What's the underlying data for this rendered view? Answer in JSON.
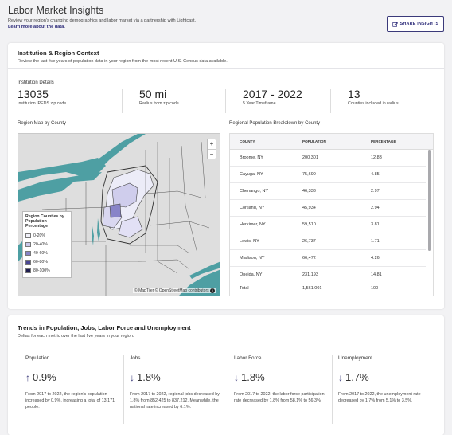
{
  "header": {
    "title": "Labor Market Insights",
    "intro_text": "Review your region's changing demographics and labor market via a partnership with Lightcast.",
    "intro_link": "Learn more about the data.",
    "share_label": "SHARE INSIGHTS"
  },
  "context": {
    "title": "Institution & Region Context",
    "subtitle": "Review the last five years of population data in your region from the most recent U.S. Census data available.",
    "details_label": "Institution Details",
    "stats": [
      {
        "value": "13035",
        "label": "Institution IPEDS zip code"
      },
      {
        "value": "50 mi",
        "label": "Radius from zip code"
      },
      {
        "value": "2017 - 2022",
        "label": "5 Year Timeframe"
      },
      {
        "value": "13",
        "label": "Counties included in radius"
      }
    ],
    "map_label": "Region Map by County",
    "table_label": "Regional Population Breakdown by County"
  },
  "map": {
    "zoom_in": "+",
    "zoom_out": "−",
    "legend_title": "Region Counties by Population Percentage",
    "legend": [
      {
        "label": "0-20%",
        "color": "#f2f2fb"
      },
      {
        "label": "20-40%",
        "color": "#c9c7ea"
      },
      {
        "label": "40-60%",
        "color": "#8884c8"
      },
      {
        "label": "60-80%",
        "color": "#4a4694"
      },
      {
        "label": "80-100%",
        "color": "#1f1d4f"
      }
    ],
    "attribution": "© MapTiler © OpenStreetMap contributors"
  },
  "table": {
    "headers": {
      "county": "COUNTY",
      "population": "POPULATION",
      "percentage": "PERCENTAGE"
    },
    "rows": [
      {
        "county": "Broome, NY",
        "population": "200,301",
        "percentage": "12.83"
      },
      {
        "county": "Cayuga, NY",
        "population": "75,690",
        "percentage": "4.85"
      },
      {
        "county": "Chenango, NY",
        "population": "46,333",
        "percentage": "2.97"
      },
      {
        "county": "Cortland, NY",
        "population": "45,934",
        "percentage": "2.94"
      },
      {
        "county": "Herkimer, NY",
        "population": "59,510",
        "percentage": "3.81"
      },
      {
        "county": "Lewis, NY",
        "population": "26,737",
        "percentage": "1.71"
      },
      {
        "county": "Madison, NY",
        "population": "66,472",
        "percentage": "4.26"
      },
      {
        "county": "Oneida, NY",
        "population": "231,193",
        "percentage": "14.81"
      }
    ],
    "total": {
      "county": "Total",
      "population": "1,561,001",
      "percentage": "100"
    }
  },
  "trends": {
    "title": "Trends in Population, Jobs, Labor Force and Unemployment",
    "subtitle": "Deltas for each metric over the last five years in your region.",
    "metrics": [
      {
        "label": "Population",
        "direction": "up",
        "value": "0.9%",
        "desc": "From 2017 to 2022, the region's population increased by 0.9%, increasing a total of 13,171 people."
      },
      {
        "label": "Jobs",
        "direction": "down",
        "value": "1.8%",
        "desc": "From 2017 to 2022, regional jobs decreased by 1.8% from 852,425 to 837,212. Meanwhile, the national rate increased by 6.1%."
      },
      {
        "label": "Labor Force",
        "direction": "down",
        "value": "1.8%",
        "desc": "From 2017 to 2022, the labor force participation rate decreased by 1.8% from 58.1% to 56.3%"
      },
      {
        "label": "Unemployment",
        "direction": "down",
        "value": "1.7%",
        "desc": "From 2017 to 2022, the unemployment rate decreased by 1.7% from 5.1% to 3.5%."
      }
    ]
  },
  "colors": {
    "accent": "#3b3a7a",
    "water": "#4e9fa3"
  }
}
